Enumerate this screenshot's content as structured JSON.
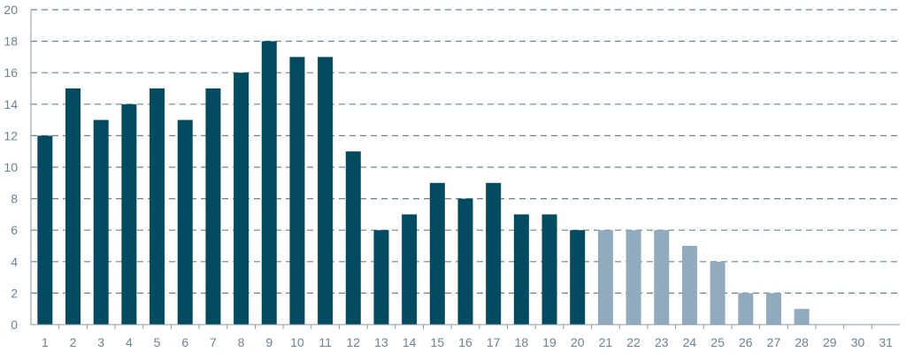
{
  "chart_data": {
    "type": "bar",
    "title": "",
    "xlabel": "",
    "ylabel": "",
    "ylim": [
      0,
      20
    ],
    "yticks": [
      0,
      2,
      4,
      6,
      8,
      10,
      12,
      14,
      16,
      18,
      20
    ],
    "grid": "horizontal dashed",
    "categories": [
      "1",
      "2",
      "3",
      "4",
      "5",
      "6",
      "7",
      "8",
      "9",
      "10",
      "11",
      "12",
      "13",
      "14",
      "15",
      "16",
      "17",
      "18",
      "19",
      "20",
      "21",
      "22",
      "23",
      "24",
      "25",
      "26",
      "27",
      "28",
      "29",
      "30",
      "31"
    ],
    "series": [
      {
        "values": [
          12,
          15,
          13,
          14,
          15,
          13,
          15,
          16,
          18,
          17,
          17,
          11,
          6,
          7,
          9,
          8,
          9,
          7,
          7,
          6,
          null,
          null,
          null,
          null,
          null,
          null,
          null,
          null,
          null,
          null,
          null
        ]
      },
      {
        "values": [
          null,
          null,
          null,
          null,
          null,
          null,
          null,
          null,
          null,
          null,
          null,
          null,
          null,
          null,
          null,
          null,
          null,
          null,
          null,
          null,
          6,
          6,
          6,
          5,
          4,
          2,
          2,
          1,
          0,
          0,
          0
        ]
      }
    ],
    "colors": {
      "series_1": "#034b61",
      "series_2": "#8fabbd",
      "grid": "#6f8090",
      "axis": "#8a9aa6",
      "tick_label": "#6a8497"
    }
  }
}
